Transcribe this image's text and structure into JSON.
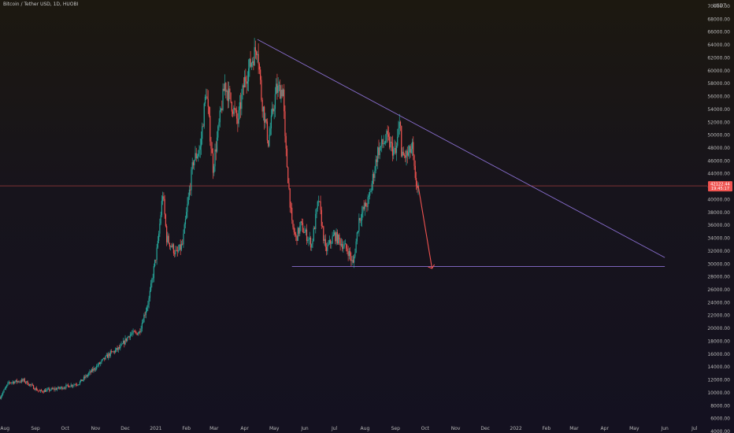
{
  "header": {
    "title": "Bitcoin / Tether USD, 1D, HUOBI"
  },
  "price_label": {
    "price": "42122.44",
    "countdown": "19:45:17"
  },
  "chart_data": {
    "type": "candlestick",
    "title": "Bitcoin / Tether USD, 1D, HUOBI",
    "y_axis": {
      "unit": "USDT",
      "ylim": [
        4000,
        70000
      ],
      "ticks": [
        "70000.00",
        "68000.00",
        "66000.00",
        "64000.00",
        "62000.00",
        "60000.00",
        "58000.00",
        "56000.00",
        "54000.00",
        "52000.00",
        "50000.00",
        "48000.00",
        "46000.00",
        "44000.00",
        "42000.00",
        "40000.00",
        "38000.00",
        "36000.00",
        "34000.00",
        "32000.00",
        "30000.00",
        "28000.00",
        "26000.00",
        "24000.00",
        "22000.00",
        "20000.00",
        "18000.00",
        "16000.00",
        "14000.00",
        "12000.00",
        "10000.00",
        "8000.00",
        "6000.00",
        "4000.00"
      ]
    },
    "x_axis": {
      "xlim": [
        "2020-07-27",
        "2022-07-14"
      ],
      "ticks": [
        {
          "label": "Aug",
          "date": "2020-08-01"
        },
        {
          "label": "Sep",
          "date": "2020-09-01"
        },
        {
          "label": "Oct",
          "date": "2020-10-01"
        },
        {
          "label": "Nov",
          "date": "2020-11-01"
        },
        {
          "label": "Dec",
          "date": "2020-12-01"
        },
        {
          "label": "2021",
          "date": "2021-01-01"
        },
        {
          "label": "Feb",
          "date": "2021-02-01"
        },
        {
          "label": "Mar",
          "date": "2021-03-01"
        },
        {
          "label": "Apr",
          "date": "2021-04-01"
        },
        {
          "label": "May",
          "date": "2021-05-01"
        },
        {
          "label": "Jun",
          "date": "2021-06-01"
        },
        {
          "label": "Jul",
          "date": "2021-07-01"
        },
        {
          "label": "Aug",
          "date": "2021-08-01"
        },
        {
          "label": "Sep",
          "date": "2021-09-01"
        },
        {
          "label": "Oct",
          "date": "2021-10-01"
        },
        {
          "label": "Nov",
          "date": "2021-11-01"
        },
        {
          "label": "Dec",
          "date": "2021-12-01"
        },
        {
          "label": "2022",
          "date": "2022-01-01"
        },
        {
          "label": "Feb",
          "date": "2022-02-01"
        },
        {
          "label": "Mar",
          "date": "2022-03-01"
        },
        {
          "label": "Apr",
          "date": "2022-04-01"
        },
        {
          "label": "May",
          "date": "2022-05-01"
        },
        {
          "label": "Jun",
          "date": "2022-06-01"
        },
        {
          "label": "Jul",
          "date": "2022-07-01"
        }
      ]
    },
    "price_path": [
      [
        "2020-07-27",
        9300
      ],
      [
        "2020-08-05",
        11600
      ],
      [
        "2020-08-20",
        11900
      ],
      [
        "2020-09-05",
        10200
      ],
      [
        "2020-09-25",
        10700
      ],
      [
        "2020-10-15",
        11500
      ],
      [
        "2020-10-31",
        13800
      ],
      [
        "2020-11-15",
        16000
      ],
      [
        "2020-11-26",
        17000
      ],
      [
        "2020-12-05",
        19000
      ],
      [
        "2020-12-15",
        19400
      ],
      [
        "2020-12-25",
        24500
      ],
      [
        "2021-01-03",
        33000
      ],
      [
        "2021-01-08",
        41000
      ],
      [
        "2021-01-12",
        34000
      ],
      [
        "2021-01-22",
        31500
      ],
      [
        "2021-01-28",
        33000
      ],
      [
        "2021-02-08",
        46000
      ],
      [
        "2021-02-15",
        48000
      ],
      [
        "2021-02-21",
        57000
      ],
      [
        "2021-02-28",
        45000
      ],
      [
        "2021-03-12",
        58000
      ],
      [
        "2021-03-25",
        52000
      ],
      [
        "2021-04-01",
        58500
      ],
      [
        "2021-04-14",
        64000
      ],
      [
        "2021-04-18",
        56000
      ],
      [
        "2021-04-25",
        49000
      ],
      [
        "2021-05-03",
        57000
      ],
      [
        "2021-05-10",
        57000
      ],
      [
        "2021-05-12",
        49000
      ],
      [
        "2021-05-19",
        36000
      ],
      [
        "2021-05-23",
        34000
      ],
      [
        "2021-05-28",
        36000
      ],
      [
        "2021-06-08",
        33000
      ],
      [
        "2021-06-15",
        40000
      ],
      [
        "2021-06-22",
        32000
      ],
      [
        "2021-07-01",
        34500
      ],
      [
        "2021-07-15",
        32000
      ],
      [
        "2021-07-20",
        29900
      ],
      [
        "2021-07-26",
        37000
      ],
      [
        "2021-08-05",
        40000
      ],
      [
        "2021-08-14",
        47500
      ],
      [
        "2021-08-23",
        49500
      ],
      [
        "2021-09-01",
        47000
      ],
      [
        "2021-09-06",
        52700
      ],
      [
        "2021-09-07",
        46500
      ],
      [
        "2021-09-14",
        47000
      ],
      [
        "2021-09-18",
        48000
      ],
      [
        "2021-09-21",
        42600
      ],
      [
        "2021-09-24",
        42122
      ]
    ],
    "annotations": {
      "descending_trendline": [
        [
          "2021-04-14",
          64850
        ],
        [
          "2022-06-01",
          31000
        ]
      ],
      "support_line": {
        "from": "2021-05-19",
        "to": "2022-06-01",
        "price": 29600
      },
      "projection_arrow": [
        [
          "2021-09-24",
          42122
        ],
        [
          "2021-10-08",
          29300
        ]
      ],
      "current_price_line": 42122.44
    },
    "grid": false,
    "legend": "none"
  }
}
